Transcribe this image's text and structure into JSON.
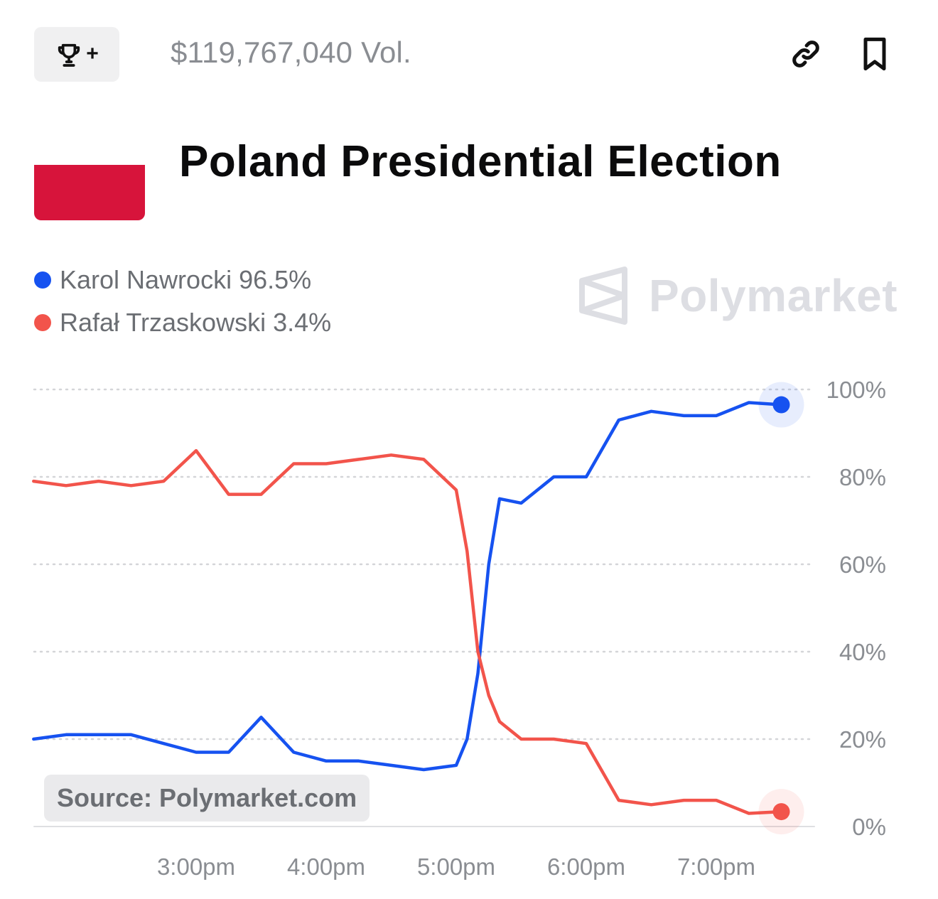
{
  "header": {
    "trophy_plus": "+",
    "volume": "$119,767,040 Vol."
  },
  "market": {
    "title": "Poland Presidential Election",
    "flag_color": "#d7143b"
  },
  "watermark": {
    "brand": "Polymarket"
  },
  "source": "Source: Polymarket.com",
  "icons": [
    "trophy-icon",
    "link-icon",
    "bookmark-icon",
    "polymarket-logo-icon"
  ],
  "chart_data": {
    "type": "line",
    "title": "",
    "xlabel": "",
    "ylabel": "",
    "ylim": [
      0,
      100
    ],
    "x_tick_labels": [
      "3:00pm",
      "4:00pm",
      "5:00pm",
      "6:00pm",
      "7:00pm"
    ],
    "y_tick_labels": [
      "100%",
      "80%",
      "60%",
      "40%",
      "20%",
      "0%"
    ],
    "y_ticks": [
      100,
      80,
      60,
      40,
      20,
      0
    ],
    "grid": "horizontal dotted",
    "legend_position": "top-left",
    "x_time": [
      "1:45pm",
      "2:00pm",
      "2:15pm",
      "2:30pm",
      "2:45pm",
      "3:00pm",
      "3:15pm",
      "3:30pm",
      "3:45pm",
      "4:00pm",
      "4:15pm",
      "4:30pm",
      "4:45pm",
      "5:00pm",
      "5:05pm",
      "5:10pm",
      "5:15pm",
      "5:20pm",
      "5:30pm",
      "5:45pm",
      "6:00pm",
      "6:15pm",
      "6:30pm",
      "6:45pm",
      "7:00pm",
      "7:15pm",
      "7:30pm"
    ],
    "series": [
      {
        "name": "Karol Nawrocki",
        "label": "Karol Nawrocki 96.5%",
        "color": "#1652f0",
        "values": [
          20,
          21,
          21,
          21,
          19,
          17,
          17,
          25,
          17,
          15,
          15,
          14,
          13,
          14,
          20,
          35,
          60,
          75,
          74,
          80,
          80,
          93,
          95,
          94,
          94,
          97,
          96.5
        ]
      },
      {
        "name": "Rafał Trzaskowski",
        "label": "Rafał Trzaskowski 3.4%",
        "color": "#f2544b",
        "values": [
          79,
          78,
          79,
          78,
          79,
          86,
          76,
          76,
          83,
          83,
          84,
          85,
          84,
          77,
          63,
          40,
          30,
          24,
          20,
          20,
          19,
          6,
          5,
          6,
          6,
          3,
          3.4
        ]
      }
    ]
  }
}
